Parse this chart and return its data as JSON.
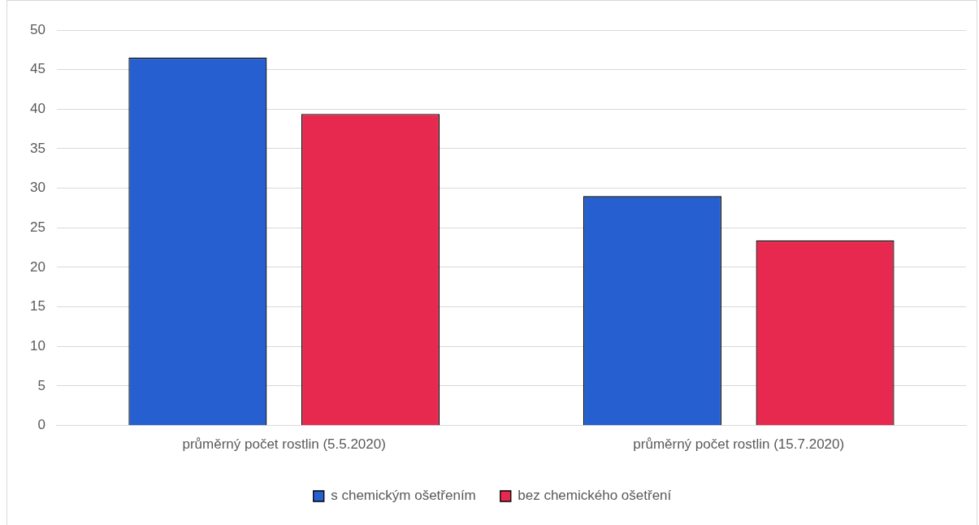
{
  "chart_data": {
    "type": "bar",
    "categories": [
      "průměrný počet rostlin (5.5.2020)",
      "průměrný počet rostlin (15.7.2020)"
    ],
    "series": [
      {
        "name": "s chemickým ošetřením",
        "color": "#2660d0",
        "values": [
          46.5,
          29.0
        ]
      },
      {
        "name": "bez chemického ošetření",
        "color": "#e8294f",
        "values": [
          39.4,
          23.4
        ]
      }
    ],
    "ylim": [
      0,
      50
    ],
    "yticks": [
      0,
      5,
      10,
      15,
      20,
      25,
      30,
      35,
      40,
      45,
      50
    ],
    "grid": "y",
    "legend": "bottom"
  }
}
